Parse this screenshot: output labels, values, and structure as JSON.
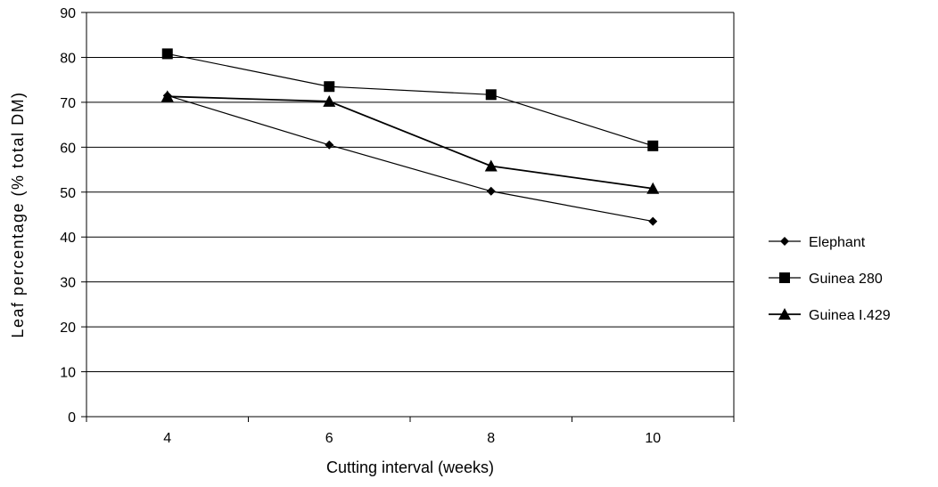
{
  "chart_data": {
    "type": "line",
    "title": "",
    "xlabel": "Cutting interval (weeks)",
    "ylabel": "Leaf percentage (% total DM)",
    "categories": [
      "4",
      "6",
      "8",
      "10"
    ],
    "ylim": [
      0,
      90
    ],
    "yticks": [
      0,
      10,
      20,
      30,
      40,
      50,
      60,
      70,
      80,
      90
    ],
    "grid": true,
    "legend_position": "right",
    "series": [
      {
        "name": "Elephant",
        "marker": "diamond",
        "values": [
          71.5,
          60.5,
          50.2,
          43.5
        ]
      },
      {
        "name": "Guinea 280",
        "marker": "square",
        "values": [
          80.8,
          73.5,
          71.7,
          60.3
        ]
      },
      {
        "name": "Guinea I.429",
        "marker": "triangle",
        "values": [
          71.3,
          70.2,
          55.8,
          50.8
        ]
      }
    ]
  }
}
